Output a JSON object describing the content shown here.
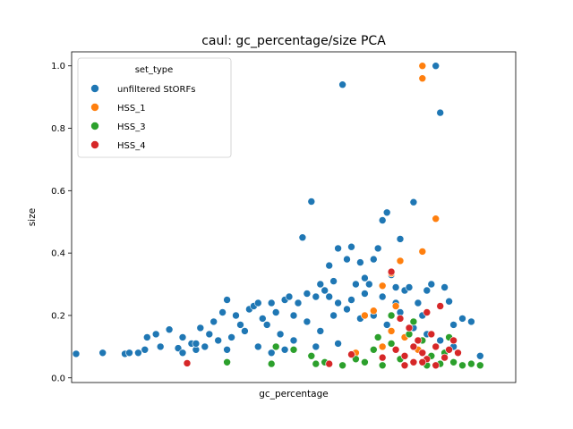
{
  "chart_data": {
    "type": "scatter",
    "title": "caul: gc_percentage/size PCA",
    "xlabel": "gc_percentage",
    "ylabel": "size",
    "ylim": [
      -0.015,
      1.045
    ],
    "xlim": [
      0,
      1
    ],
    "yticks": [
      0.0,
      0.2,
      0.4,
      0.6,
      0.8,
      1.0
    ],
    "ytick_labels": [
      "0.0",
      "0.2",
      "0.4",
      "0.6",
      "0.8",
      "1.0"
    ],
    "grid": false,
    "legend": {
      "title": "set_type",
      "placement": "top-left"
    },
    "series": [
      {
        "name": "unfiltered StORFs",
        "color": "#1f77b4",
        "points": [
          [
            0.01,
            0.077
          ],
          [
            0.07,
            0.08
          ],
          [
            0.12,
            0.077
          ],
          [
            0.13,
            0.08
          ],
          [
            0.15,
            0.08
          ],
          [
            0.165,
            0.09
          ],
          [
            0.17,
            0.13
          ],
          [
            0.19,
            0.14
          ],
          [
            0.2,
            0.1
          ],
          [
            0.22,
            0.155
          ],
          [
            0.24,
            0.095
          ],
          [
            0.25,
            0.13
          ],
          [
            0.27,
            0.11
          ],
          [
            0.28,
            0.09
          ],
          [
            0.29,
            0.16
          ],
          [
            0.31,
            0.14
          ],
          [
            0.32,
            0.18
          ],
          [
            0.34,
            0.21
          ],
          [
            0.35,
            0.25
          ],
          [
            0.37,
            0.2
          ],
          [
            0.38,
            0.17
          ],
          [
            0.4,
            0.22
          ],
          [
            0.41,
            0.23
          ],
          [
            0.42,
            0.24
          ],
          [
            0.43,
            0.19
          ],
          [
            0.45,
            0.24
          ],
          [
            0.46,
            0.21
          ],
          [
            0.48,
            0.25
          ],
          [
            0.49,
            0.26
          ],
          [
            0.5,
            0.2
          ],
          [
            0.51,
            0.24
          ],
          [
            0.52,
            0.45
          ],
          [
            0.53,
            0.27
          ],
          [
            0.54,
            0.565
          ],
          [
            0.55,
            0.26
          ],
          [
            0.56,
            0.3
          ],
          [
            0.57,
            0.28
          ],
          [
            0.58,
            0.36
          ],
          [
            0.59,
            0.31
          ],
          [
            0.6,
            0.415
          ],
          [
            0.61,
            0.94
          ],
          [
            0.62,
            0.38
          ],
          [
            0.63,
            0.42
          ],
          [
            0.64,
            0.3
          ],
          [
            0.65,
            0.37
          ],
          [
            0.66,
            0.32
          ],
          [
            0.67,
            0.3
          ],
          [
            0.68,
            0.38
          ],
          [
            0.69,
            0.415
          ],
          [
            0.7,
            0.505
          ],
          [
            0.71,
            0.53
          ],
          [
            0.72,
            0.33
          ],
          [
            0.73,
            0.29
          ],
          [
            0.74,
            0.445
          ],
          [
            0.75,
            0.28
          ],
          [
            0.76,
            0.29
          ],
          [
            0.77,
            0.563
          ],
          [
            0.78,
            0.24
          ],
          [
            0.79,
            0.2
          ],
          [
            0.8,
            0.28
          ],
          [
            0.81,
            0.3
          ],
          [
            0.82,
            1.0
          ],
          [
            0.83,
            0.85
          ],
          [
            0.84,
            0.29
          ],
          [
            0.85,
            0.245
          ],
          [
            0.86,
            0.17
          ],
          [
            0.88,
            0.19
          ],
          [
            0.9,
            0.18
          ],
          [
            0.92,
            0.07
          ],
          [
            0.3,
            0.1
          ],
          [
            0.33,
            0.12
          ],
          [
            0.36,
            0.13
          ],
          [
            0.39,
            0.15
          ],
          [
            0.42,
            0.1
          ],
          [
            0.44,
            0.17
          ],
          [
            0.47,
            0.14
          ],
          [
            0.5,
            0.12
          ],
          [
            0.53,
            0.18
          ],
          [
            0.56,
            0.15
          ],
          [
            0.59,
            0.2
          ],
          [
            0.62,
            0.22
          ],
          [
            0.65,
            0.19
          ],
          [
            0.68,
            0.2
          ],
          [
            0.71,
            0.17
          ],
          [
            0.74,
            0.21
          ],
          [
            0.77,
            0.16
          ],
          [
            0.8,
            0.14
          ],
          [
            0.83,
            0.12
          ],
          [
            0.86,
            0.1
          ],
          [
            0.58,
            0.26
          ],
          [
            0.6,
            0.24
          ],
          [
            0.63,
            0.25
          ],
          [
            0.66,
            0.27
          ],
          [
            0.7,
            0.26
          ],
          [
            0.73,
            0.24
          ],
          [
            0.45,
            0.08
          ],
          [
            0.48,
            0.09
          ],
          [
            0.55,
            0.1
          ],
          [
            0.6,
            0.11
          ],
          [
            0.25,
            0.08
          ],
          [
            0.28,
            0.11
          ],
          [
            0.35,
            0.09
          ]
        ]
      },
      {
        "name": "HSS_1",
        "color": "#ff7f0e",
        "points": [
          [
            0.79,
            1.0
          ],
          [
            0.79,
            0.96
          ],
          [
            0.82,
            0.51
          ],
          [
            0.79,
            0.405
          ],
          [
            0.72,
            0.335
          ],
          [
            0.74,
            0.375
          ],
          [
            0.7,
            0.295
          ],
          [
            0.73,
            0.23
          ],
          [
            0.68,
            0.215
          ],
          [
            0.66,
            0.2
          ],
          [
            0.72,
            0.15
          ],
          [
            0.75,
            0.13
          ],
          [
            0.7,
            0.1
          ],
          [
            0.78,
            0.09
          ],
          [
            0.64,
            0.08
          ]
        ]
      },
      {
        "name": "HSS_3",
        "color": "#2ca02c",
        "points": [
          [
            0.46,
            0.1
          ],
          [
            0.5,
            0.09
          ],
          [
            0.54,
            0.07
          ],
          [
            0.57,
            0.05
          ],
          [
            0.61,
            0.04
          ],
          [
            0.64,
            0.06
          ],
          [
            0.66,
            0.05
          ],
          [
            0.7,
            0.04
          ],
          [
            0.74,
            0.06
          ],
          [
            0.77,
            0.05
          ],
          [
            0.8,
            0.04
          ],
          [
            0.83,
            0.045
          ],
          [
            0.86,
            0.05
          ],
          [
            0.88,
            0.04
          ],
          [
            0.9,
            0.045
          ],
          [
            0.92,
            0.04
          ],
          [
            0.69,
            0.13
          ],
          [
            0.72,
            0.11
          ],
          [
            0.76,
            0.14
          ],
          [
            0.79,
            0.12
          ],
          [
            0.82,
            0.1
          ],
          [
            0.85,
            0.13
          ],
          [
            0.35,
            0.05
          ],
          [
            0.45,
            0.045
          ],
          [
            0.55,
            0.045
          ],
          [
            0.72,
            0.2
          ],
          [
            0.77,
            0.18
          ],
          [
            0.84,
            0.08
          ],
          [
            0.68,
            0.09
          ],
          [
            0.81,
            0.07
          ]
        ]
      },
      {
        "name": "HSS_4",
        "color": "#d62728",
        "points": [
          [
            0.26,
            0.047
          ],
          [
            0.58,
            0.045
          ],
          [
            0.63,
            0.075
          ],
          [
            0.7,
            0.065
          ],
          [
            0.73,
            0.09
          ],
          [
            0.75,
            0.07
          ],
          [
            0.77,
            0.05
          ],
          [
            0.79,
            0.08
          ],
          [
            0.8,
            0.06
          ],
          [
            0.82,
            0.1
          ],
          [
            0.84,
            0.065
          ],
          [
            0.85,
            0.09
          ],
          [
            0.83,
            0.23
          ],
          [
            0.8,
            0.21
          ],
          [
            0.78,
            0.12
          ],
          [
            0.76,
            0.16
          ],
          [
            0.74,
            0.19
          ],
          [
            0.81,
            0.14
          ],
          [
            0.86,
            0.12
          ],
          [
            0.72,
            0.34
          ],
          [
            0.79,
            0.05
          ],
          [
            0.87,
            0.08
          ],
          [
            0.77,
            0.1
          ],
          [
            0.82,
            0.04
          ],
          [
            0.75,
            0.04
          ]
        ]
      }
    ]
  }
}
